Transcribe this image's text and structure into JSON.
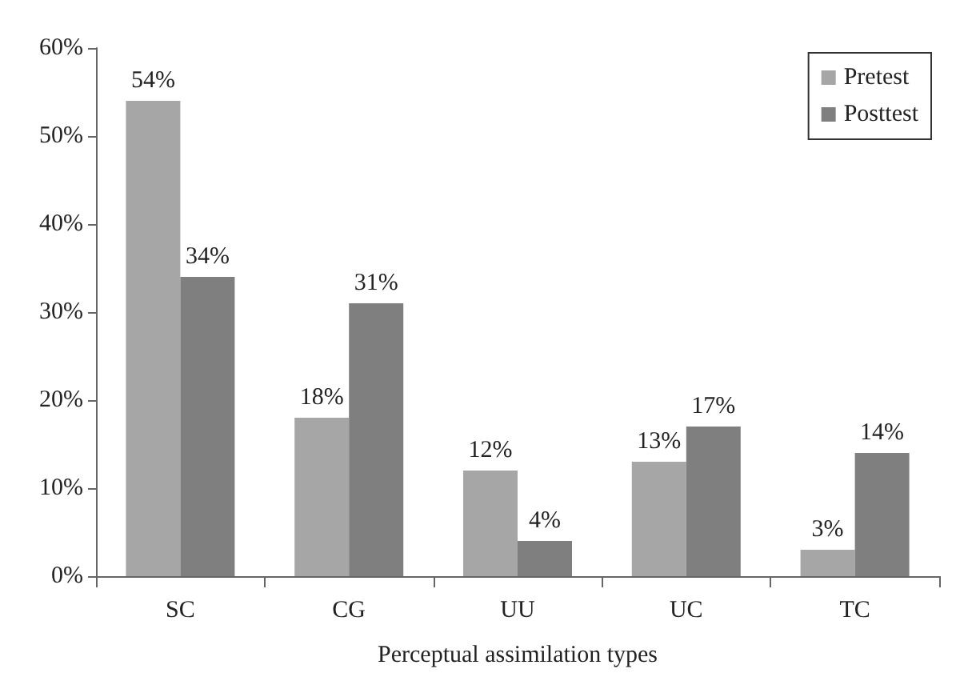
{
  "chart_data": {
    "type": "bar",
    "xlabel": "Perceptual assimilation types",
    "categories": [
      "SC",
      "CG",
      "UU",
      "UC",
      "TC"
    ],
    "series": [
      {
        "name": "Pretest",
        "color": "#a6a6a6",
        "values": [
          54,
          18,
          12,
          13,
          3
        ]
      },
      {
        "name": "Posttest",
        "color": "#7f7f7f",
        "values": [
          34,
          31,
          4,
          17,
          14
        ]
      }
    ],
    "ylim": [
      0,
      60
    ],
    "yticks": [
      {
        "value": 0,
        "label": "0%"
      },
      {
        "value": 10,
        "label": "10%"
      },
      {
        "value": 20,
        "label": "20%"
      },
      {
        "value": 30,
        "label": "30%"
      },
      {
        "value": 40,
        "label": "40%"
      },
      {
        "value": 50,
        "label": "50%"
      },
      {
        "value": 60,
        "label": "60%"
      }
    ],
    "value_labels": [
      [
        "54%",
        "18%",
        "12%",
        "13%",
        "3%"
      ],
      [
        "34%",
        "31%",
        "4%",
        "17%",
        "14%"
      ]
    ],
    "grid": false,
    "legend": "top right"
  }
}
